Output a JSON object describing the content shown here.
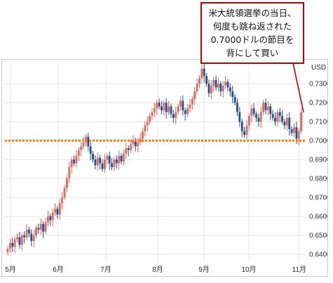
{
  "colors": {
    "up": "#e0655e",
    "down": "#1c4e91",
    "support_line": "#ee7d1d",
    "callout_border": "#c00000",
    "grid": "#e6e6e6"
  },
  "callout": {
    "text": "米大統領選挙の当日、\n何度も跳ね返された\n0.7000ドルの節目を\n背にして買い"
  },
  "chart_data": {
    "type": "candlestick",
    "title": "",
    "unit_label": "USD",
    "y_axis_position": "right",
    "ylim": [
      0.636,
      0.7412
    ],
    "y_ticks": [
      "0.7300",
      "0.7200",
      "0.7100",
      "0.7000",
      "0.6900",
      "0.6800",
      "0.6700",
      "0.6600",
      "0.6500",
      "0.6400"
    ],
    "x_ticks": [
      "5月",
      "6月",
      "7月",
      "8月",
      "9月",
      "10月",
      "11月"
    ],
    "grid": true,
    "support_line": 0.7,
    "close": [
      0.643,
      0.646,
      0.644,
      0.648,
      0.649,
      0.645,
      0.65,
      0.649,
      0.653,
      0.651,
      0.647,
      0.65,
      0.654,
      0.653,
      0.656,
      0.652,
      0.657,
      0.66,
      0.658,
      0.662,
      0.664,
      0.661,
      0.667,
      0.67,
      0.675,
      0.68,
      0.686,
      0.69,
      0.688,
      0.692,
      0.695,
      0.697,
      0.699,
      0.702,
      0.697,
      0.693,
      0.69,
      0.687,
      0.691,
      0.688,
      0.685,
      0.69,
      0.692,
      0.688,
      0.686,
      0.69,
      0.688,
      0.692,
      0.689,
      0.693,
      0.696,
      0.695,
      0.698,
      0.7,
      0.697,
      0.699,
      0.701,
      0.705,
      0.708,
      0.71,
      0.713,
      0.715,
      0.717,
      0.72,
      0.718,
      0.716,
      0.72,
      0.715,
      0.718,
      0.714,
      0.712,
      0.715,
      0.718,
      0.721,
      0.716,
      0.714,
      0.717,
      0.719,
      0.722,
      0.726,
      0.73,
      0.733,
      0.738,
      0.734,
      0.73,
      0.725,
      0.729,
      0.732,
      0.728,
      0.73,
      0.726,
      0.729,
      0.731,
      0.728,
      0.726,
      0.723,
      0.72,
      0.715,
      0.71,
      0.705,
      0.703,
      0.708,
      0.713,
      0.717,
      0.714,
      0.712,
      0.71,
      0.715,
      0.72,
      0.716,
      0.718,
      0.714,
      0.712,
      0.71,
      0.715,
      0.713,
      0.71,
      0.708,
      0.712,
      0.706,
      0.704,
      0.707,
      0.701,
      0.705,
      0.715
    ]
  }
}
